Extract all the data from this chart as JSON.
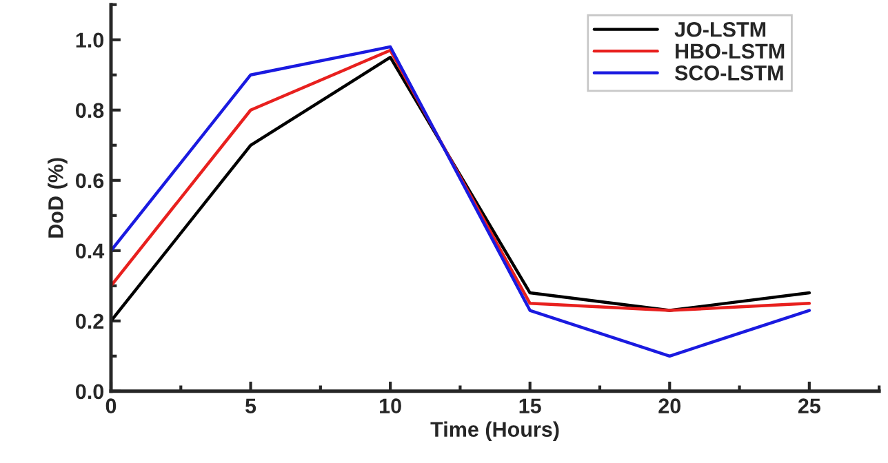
{
  "chart_data": {
    "type": "line",
    "xlabel": "Time (Hours)",
    "ylabel": "DoD (%)",
    "x": [
      0,
      5,
      10,
      15,
      20,
      25
    ],
    "series": [
      {
        "name": "JO-LSTM",
        "color": "#000000",
        "values": [
          0.2,
          0.7,
          0.95,
          0.28,
          0.23,
          0.28
        ]
      },
      {
        "name": "HBO-LSTM",
        "color": "#e8201e",
        "values": [
          0.3,
          0.8,
          0.97,
          0.25,
          0.23,
          0.25
        ]
      },
      {
        "name": "SCO-LSTM",
        "color": "#1a1ae0",
        "values": [
          0.4,
          0.9,
          0.98,
          0.23,
          0.1,
          0.23
        ]
      }
    ],
    "xlim": [
      0,
      27.5
    ],
    "ylim": [
      0,
      1.1
    ],
    "xticks": [
      0,
      5,
      10,
      15,
      20,
      25
    ],
    "yticks": [
      {
        "value": 0,
        "label": "0.0"
      },
      {
        "value": 0.2,
        "label": "0.2"
      },
      {
        "value": 0.4,
        "label": "0.4"
      },
      {
        "value": 0.6,
        "label": "0.6"
      },
      {
        "value": 0.8,
        "label": "0.8"
      },
      {
        "value": 1.0,
        "label": "1.0"
      }
    ],
    "legend": "top right",
    "grid": false,
    "marker": "none",
    "line_style": "solid"
  }
}
